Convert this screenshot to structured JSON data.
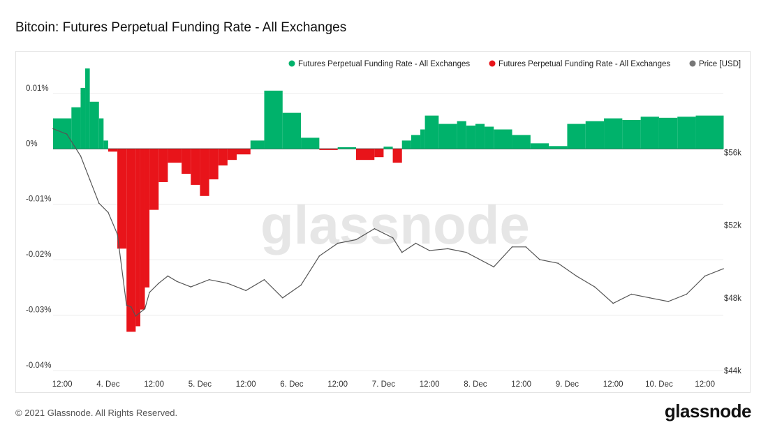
{
  "page": {
    "title": "Bitcoin: Futures Perpetual Funding Rate - All Exchanges",
    "copyright": "© 2021 Glassnode. All Rights Reserved.",
    "logo": "glassnode",
    "watermark": "glassnode"
  },
  "chart_data": {
    "type": "area",
    "legend": [
      {
        "label": "Futures Perpetual Funding Rate - All Exchanges",
        "color": "#00b26b"
      },
      {
        "label": "Futures Perpetual Funding Rate - All Exchanges",
        "color": "#e8141a"
      },
      {
        "label": "Price [USD]",
        "color": "#777777"
      }
    ],
    "legend_position": "top-right",
    "grid": true,
    "colors": {
      "positive": "#00b26b",
      "negative": "#e8141a",
      "price": "#555555",
      "grid": "#ececec"
    },
    "x_labels": [
      "12:00",
      "4. Dec",
      "12:00",
      "5. Dec",
      "12:00",
      "6. Dec",
      "12:00",
      "7. Dec",
      "12:00",
      "8. Dec",
      "12:00",
      "9. Dec",
      "12:00",
      "10. Dec",
      "12:00"
    ],
    "x_range": [
      0,
      7.3
    ],
    "y_left": {
      "ticks": [
        "0.01%",
        "0%",
        "-0.01%",
        "-0.02%",
        "-0.03%",
        "-0.04%"
      ],
      "tick_values": [
        0.01,
        0,
        -0.01,
        -0.02,
        -0.03,
        -0.04
      ],
      "range": [
        -0.04,
        0.0125
      ]
    },
    "y_right": {
      "ticks": [
        "$56k",
        "$52k",
        "$48k",
        "$44k"
      ],
      "tick_values": [
        56000,
        52000,
        48000,
        44000
      ],
      "range": [
        44000,
        60000
      ]
    },
    "funding_rate": {
      "x": [
        0,
        0.2,
        0.3,
        0.35,
        0.4,
        0.5,
        0.55,
        0.6,
        0.7,
        0.8,
        0.9,
        0.95,
        1.0,
        1.05,
        1.15,
        1.25,
        1.4,
        1.5,
        1.6,
        1.7,
        1.8,
        1.9,
        2.0,
        2.15,
        2.3,
        2.5,
        2.7,
        2.9,
        3.1,
        3.3,
        3.5,
        3.6,
        3.7,
        3.8,
        3.9,
        4.0,
        4.05,
        4.2,
        4.4,
        4.5,
        4.6,
        4.7,
        4.8,
        5.0,
        5.2,
        5.4,
        5.6,
        5.8,
        6.0,
        6.2,
        6.4,
        6.6,
        6.8,
        7.0,
        7.3
      ],
      "y": [
        0.0055,
        0.0075,
        0.011,
        0.0145,
        0.0085,
        0.0055,
        0.0015,
        -0.0005,
        -0.018,
        -0.033,
        -0.032,
        -0.029,
        -0.025,
        -0.011,
        -0.006,
        -0.0025,
        -0.0045,
        -0.0065,
        -0.0085,
        -0.0055,
        -0.003,
        -0.002,
        -0.001,
        0.0015,
        0.0105,
        0.0065,
        0.002,
        -0.0002,
        0.0003,
        -0.002,
        -0.0015,
        0.0004,
        -0.0025,
        0.0015,
        0.0025,
        0.0035,
        0.006,
        0.0045,
        0.005,
        0.0042,
        0.0045,
        0.004,
        0.0035,
        0.0025,
        0.001,
        0.0005,
        0.0045,
        0.005,
        0.0055,
        0.0052,
        0.0058,
        0.0056,
        0.0058,
        0.006,
        0.006
      ]
    },
    "price": {
      "x": [
        0,
        0.15,
        0.3,
        0.4,
        0.5,
        0.6,
        0.7,
        0.8,
        0.85,
        0.9,
        1.0,
        1.05,
        1.15,
        1.25,
        1.35,
        1.5,
        1.7,
        1.9,
        2.1,
        2.3,
        2.5,
        2.7,
        2.9,
        3.1,
        3.3,
        3.5,
        3.7,
        3.8,
        3.95,
        4.1,
        4.3,
        4.5,
        4.8,
        5.0,
        5.15,
        5.3,
        5.5,
        5.7,
        5.9,
        6.1,
        6.3,
        6.5,
        6.7,
        6.9,
        7.1,
        7.3
      ],
      "y": [
        57300,
        57000,
        55800,
        54500,
        53200,
        52700,
        51500,
        47600,
        47500,
        47000,
        47400,
        48300,
        48800,
        49200,
        48900,
        48600,
        49000,
        48800,
        48400,
        49000,
        48000,
        48700,
        50300,
        51000,
        51200,
        51800,
        51300,
        50500,
        51000,
        50600,
        50700,
        50500,
        49700,
        50800,
        50800,
        50100,
        49900,
        49200,
        48600,
        47700,
        48200,
        48000,
        47800,
        48200,
        49200,
        49600
      ]
    }
  }
}
